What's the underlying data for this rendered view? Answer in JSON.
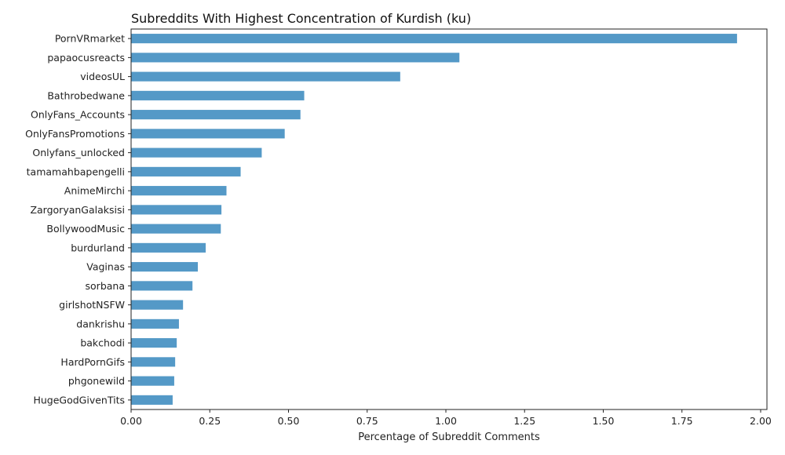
{
  "chart_data": {
    "type": "bar",
    "orientation": "horizontal",
    "title": "Subreddits With Highest Concentration of Kurdish (ku)",
    "xlabel": "Percentage of Subreddit Comments",
    "ylabel": "",
    "xlim": [
      0,
      2.02
    ],
    "xticks": [
      0.0,
      0.25,
      0.5,
      0.75,
      1.0,
      1.25,
      1.5,
      1.75,
      2.0
    ],
    "xtick_labels": [
      "0.00",
      "0.25",
      "0.50",
      "0.75",
      "1.00",
      "1.25",
      "1.50",
      "1.75",
      "2.00"
    ],
    "categories": [
      "PornVRmarket",
      "papaocusreacts",
      "videosUL",
      "Bathrobedwane",
      "OnlyFans_Accounts",
      "OnlyFansPromotions",
      "Onlyfans_unlocked",
      "tamamahbapengelli",
      "AnimeMirchi",
      "ZargoryanGalaksisi",
      "BollywoodMusic",
      "burdurland",
      "Vaginas",
      "sorbana",
      "girlshotNSFW",
      "dankrishu",
      "bakchodi",
      "HardPornGifs",
      "phgonewild",
      "HugeGodGivenTits"
    ],
    "values": [
      1.925,
      1.043,
      0.855,
      0.55,
      0.538,
      0.488,
      0.415,
      0.348,
      0.303,
      0.287,
      0.285,
      0.237,
      0.212,
      0.195,
      0.165,
      0.152,
      0.145,
      0.14,
      0.137,
      0.132
    ],
    "grid": false,
    "colors": {
      "bar": "#5499c7",
      "axis": "#222222"
    }
  }
}
